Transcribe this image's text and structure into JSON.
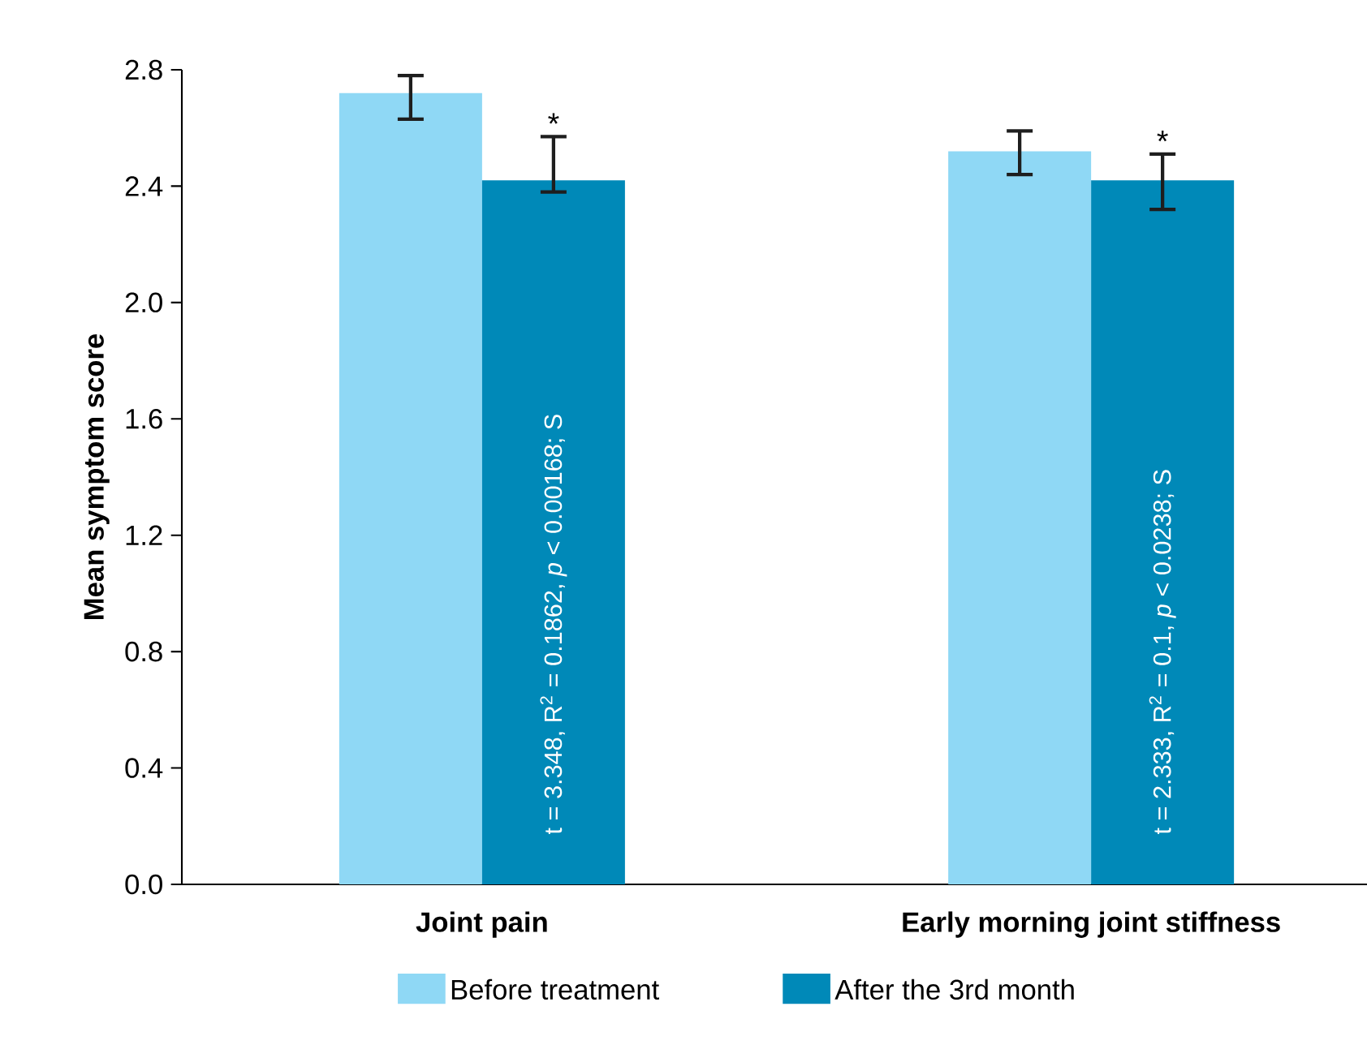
{
  "chart_data": {
    "type": "bar",
    "ylabel": "Mean symptom score",
    "categories": [
      "Joint pain",
      "Early morning joint stiffness"
    ],
    "series": [
      {
        "name": "Before treatment",
        "color": "#8fd8f5",
        "values": [
          2.72,
          2.52
        ],
        "errors": [
          [
            2.63,
            2.78
          ],
          [
            2.44,
            2.59
          ]
        ]
      },
      {
        "name": "After the 3rd month",
        "color": "#0089b8",
        "values": [
          2.42,
          2.42
        ],
        "errors": [
          [
            2.38,
            2.57
          ],
          [
            2.32,
            2.51
          ]
        ]
      }
    ],
    "ylim": [
      0,
      2.8
    ],
    "yticks": [
      {
        "value": 0,
        "label": "0.0"
      },
      {
        "value": 0.4,
        "label": "0.4"
      },
      {
        "value": 0.8,
        "label": "0.8"
      },
      {
        "value": 1.2,
        "label": "1.2"
      },
      {
        "value": 1.6,
        "label": "1.6"
      },
      {
        "value": 2.0,
        "label": "2.0"
      },
      {
        "value": 2.4,
        "label": "2.4"
      },
      {
        "value": 2.8,
        "label": "2.8"
      }
    ],
    "legend": "bottom",
    "annotations": [
      {
        "text": "*",
        "x": "Joint pain",
        "y": 2.57
      },
      {
        "text": "*",
        "x": "Early morning joint stiffness",
        "y": 2.51
      },
      "t = 3.348, R$^{2}$ = 0.1862, *p* < 0.00168; S",
      "t = 2.333, R$^{2}$ = 0.1, *p* < 0.0238; S"
    ]
  }
}
